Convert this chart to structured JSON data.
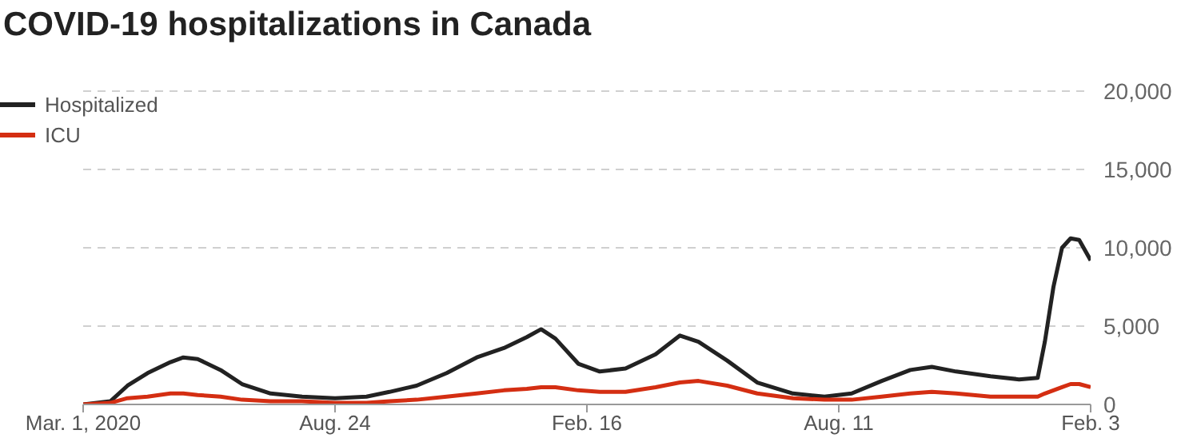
{
  "chart_data": {
    "type": "line",
    "title": "COVID-19 hospitalizations in Canada",
    "x": [
      "2020-03-01",
      "2020-03-20",
      "2020-04-01",
      "2020-04-15",
      "2020-05-01",
      "2020-05-10",
      "2020-05-20",
      "2020-06-05",
      "2020-06-20",
      "2020-07-10",
      "2020-08-01",
      "2020-08-24",
      "2020-09-15",
      "2020-10-01",
      "2020-10-20",
      "2020-11-10",
      "2020-12-01",
      "2020-12-20",
      "2021-01-05",
      "2021-01-15",
      "2021-01-25",
      "2021-02-10",
      "2021-02-25",
      "2021-03-15",
      "2021-04-05",
      "2021-04-22",
      "2021-05-05",
      "2021-05-25",
      "2021-06-15",
      "2021-07-10",
      "2021-08-01",
      "2021-08-20",
      "2021-09-10",
      "2021-09-30",
      "2021-10-15",
      "2021-11-01",
      "2021-11-25",
      "2021-12-15",
      "2021-12-28",
      "2022-01-02",
      "2022-01-08",
      "2022-01-14",
      "2022-01-20",
      "2022-01-26",
      "2022-02-03"
    ],
    "series": [
      {
        "name": "Hospitalized",
        "color": "#222222",
        "values": [
          0,
          200,
          1200,
          2000,
          2700,
          3000,
          2900,
          2200,
          1300,
          700,
          500,
          400,
          500,
          800,
          1200,
          2000,
          3000,
          3600,
          4300,
          4800,
          4200,
          2600,
          2100,
          2300,
          3200,
          4400,
          4000,
          2800,
          1400,
          700,
          500,
          700,
          1500,
          2200,
          2400,
          2100,
          1800,
          1600,
          1700,
          4000,
          7500,
          10000,
          10600,
          10500,
          9200
        ]
      },
      {
        "name": "ICU",
        "color": "#d42e12",
        "values": [
          0,
          100,
          400,
          500,
          700,
          700,
          600,
          500,
          300,
          200,
          200,
          100,
          100,
          200,
          300,
          500,
          700,
          900,
          1000,
          1100,
          1100,
          900,
          800,
          800,
          1100,
          1400,
          1500,
          1200,
          700,
          400,
          300,
          300,
          500,
          700,
          800,
          700,
          500,
          500,
          500,
          700,
          900,
          1100,
          1300,
          1300,
          1100
        ]
      }
    ],
    "xlim": [
      "2020-03-01",
      "2022-02-03"
    ],
    "xticks": [
      {
        "value": "2020-03-01",
        "label": "Mar. 1, 2020"
      },
      {
        "value": "2020-08-24",
        "label": "Aug. 24"
      },
      {
        "value": "2021-02-16",
        "label": "Feb. 16"
      },
      {
        "value": "2021-08-11",
        "label": "Aug. 11"
      },
      {
        "value": "2022-02-03",
        "label": "Feb. 3"
      }
    ],
    "ylim": [
      0,
      20000
    ],
    "yticks": [
      0,
      {
        "value": 5000,
        "label": "5,000"
      },
      {
        "value": 10000,
        "label": "10,000"
      },
      {
        "value": 15000,
        "label": "15,000"
      },
      {
        "value": 20000,
        "label": "20,000"
      }
    ],
    "grid": "y",
    "legend": "top left",
    "marker": "none",
    "line_style": "solid"
  }
}
